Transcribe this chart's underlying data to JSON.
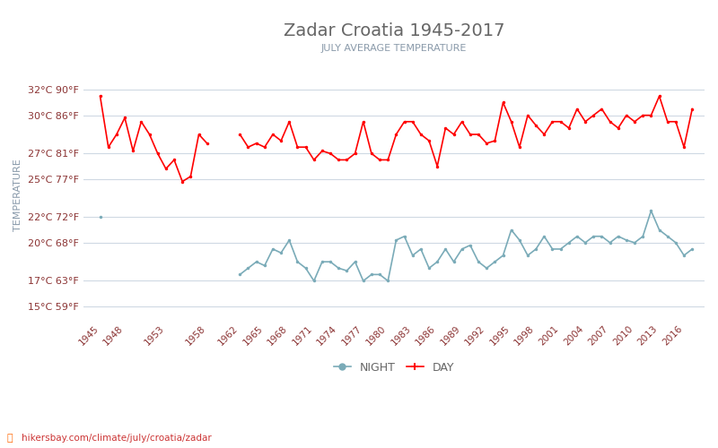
{
  "title": "Zadar Croatia 1945-2017",
  "subtitle": "JULY AVERAGE TEMPERATURE",
  "ylabel": "TEMPERATURE",
  "watermark": "hikersbay.com/climate/july/croatia/zadar",
  "legend_night": "NIGHT",
  "legend_day": "DAY",
  "years": [
    1945,
    1946,
    1947,
    1948,
    1949,
    1950,
    1951,
    1952,
    1953,
    1954,
    1955,
    1956,
    1957,
    1958,
    1959,
    1960,
    1961,
    1962,
    1963,
    1964,
    1965,
    1966,
    1967,
    1968,
    1969,
    1970,
    1971,
    1972,
    1973,
    1974,
    1975,
    1976,
    1977,
    1978,
    1979,
    1980,
    1981,
    1982,
    1983,
    1984,
    1985,
    1986,
    1987,
    1988,
    1989,
    1990,
    1991,
    1992,
    1993,
    1994,
    1995,
    1996,
    1997,
    1998,
    1999,
    2000,
    2001,
    2002,
    2003,
    2004,
    2005,
    2006,
    2007,
    2008,
    2009,
    2010,
    2011,
    2012,
    2013,
    2014,
    2015,
    2016,
    2017
  ],
  "day_temps": [
    31.5,
    27.5,
    28.5,
    29.8,
    27.2,
    29.5,
    28.5,
    27.0,
    25.8,
    26.5,
    24.8,
    25.2,
    28.5,
    27.8,
    null,
    null,
    null,
    28.5,
    27.5,
    27.8,
    27.5,
    28.5,
    28.0,
    29.5,
    27.5,
    27.5,
    26.5,
    27.2,
    27.0,
    26.5,
    26.5,
    27.0,
    29.5,
    27.0,
    26.5,
    26.5,
    28.5,
    29.5,
    29.5,
    28.5,
    28.0,
    26.0,
    29.0,
    28.5,
    29.5,
    28.5,
    28.5,
    27.8,
    28.0,
    31.0,
    29.5,
    27.5,
    30.0,
    29.2,
    28.5,
    29.5,
    29.5,
    29.0,
    30.5,
    29.5,
    30.0,
    30.5,
    29.5,
    29.0,
    30.0,
    29.5,
    30.0,
    30.0,
    31.5,
    29.5,
    29.5,
    27.5,
    30.5
  ],
  "night_temps": [
    22.0,
    null,
    null,
    null,
    null,
    null,
    null,
    null,
    null,
    null,
    null,
    null,
    null,
    null,
    null,
    null,
    null,
    17.5,
    18.0,
    18.5,
    18.2,
    19.5,
    19.2,
    20.2,
    18.5,
    18.0,
    17.0,
    18.5,
    18.5,
    18.0,
    17.8,
    18.5,
    17.0,
    17.5,
    17.5,
    17.0,
    20.2,
    20.5,
    19.0,
    19.5,
    18.0,
    18.5,
    19.5,
    18.5,
    19.5,
    19.8,
    18.5,
    18.0,
    18.5,
    19.0,
    21.0,
    20.2,
    19.0,
    19.5,
    20.5,
    19.5,
    19.5,
    20.0,
    20.5,
    20.0,
    20.5,
    20.5,
    20.0,
    20.5,
    20.2,
    20.0,
    20.5,
    22.5,
    21.0,
    20.5,
    20.0,
    19.0,
    19.5
  ],
  "yticks_c": [
    15,
    17,
    20,
    22,
    25,
    27,
    30,
    32
  ],
  "yticks_f": [
    59,
    63,
    68,
    72,
    77,
    81,
    86,
    90
  ],
  "xtick_years": [
    1945,
    1948,
    1953,
    1958,
    1962,
    1965,
    1968,
    1971,
    1974,
    1977,
    1980,
    1983,
    1986,
    1989,
    1992,
    1995,
    1998,
    2001,
    2004,
    2007,
    2010,
    2013,
    2016
  ],
  "ymin": 14.0,
  "ymax": 33.5,
  "bg_color": "#ffffff",
  "grid_color": "#cfd9e3",
  "day_color": "#ff0000",
  "night_color": "#7aabb8",
  "title_color": "#666666",
  "subtitle_color": "#8a9aaa",
  "tick_label_color": "#8b3333",
  "ylabel_color": "#8899aa",
  "watermark_color": "#cc3333",
  "watermark_icon_color": "#ff6600"
}
